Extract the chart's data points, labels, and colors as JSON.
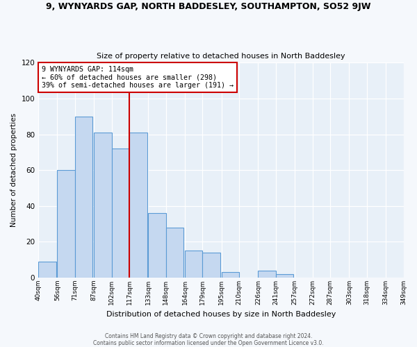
{
  "title": "9, WYNYARDS GAP, NORTH BADDESLEY, SOUTHAMPTON, SO52 9JW",
  "subtitle": "Size of property relative to detached houses in North Baddesley",
  "xlabel": "Distribution of detached houses by size in North Baddesley",
  "ylabel": "Number of detached properties",
  "bar_left_edges": [
    40,
    56,
    71,
    87,
    102,
    117,
    133,
    148,
    164,
    179,
    195,
    210,
    226,
    241,
    257,
    272,
    287,
    303,
    318,
    334
  ],
  "bar_heights": [
    9,
    60,
    90,
    81,
    72,
    81,
    36,
    28,
    15,
    14,
    3,
    0,
    4,
    2,
    0,
    0,
    0,
    0,
    0,
    0
  ],
  "bin_width": 15,
  "tick_labels": [
    "40sqm",
    "56sqm",
    "71sqm",
    "87sqm",
    "102sqm",
    "117sqm",
    "133sqm",
    "148sqm",
    "164sqm",
    "179sqm",
    "195sqm",
    "210sqm",
    "226sqm",
    "241sqm",
    "257sqm",
    "272sqm",
    "287sqm",
    "303sqm",
    "318sqm",
    "334sqm",
    "349sqm"
  ],
  "tick_positions": [
    40,
    56,
    71,
    87,
    102,
    117,
    133,
    148,
    164,
    179,
    195,
    210,
    226,
    241,
    257,
    272,
    287,
    303,
    318,
    334,
    349
  ],
  "bar_color": "#c5d8f0",
  "bar_edge_color": "#5b9bd5",
  "vline_x": 117,
  "vline_color": "#cc0000",
  "annotation_text_line1": "9 WYNYARDS GAP: 114sqm",
  "annotation_text_line2": "← 60% of detached houses are smaller (298)",
  "annotation_text_line3": "39% of semi-detached houses are larger (191) →",
  "ylim": [
    0,
    120
  ],
  "yticks": [
    0,
    20,
    40,
    60,
    80,
    100,
    120
  ],
  "plot_bg_color": "#e8f0f8",
  "fig_bg_color": "#f5f8fc",
  "footer_line1": "Contains HM Land Registry data © Crown copyright and database right 2024.",
  "footer_line2": "Contains public sector information licensed under the Open Government Licence v3.0."
}
